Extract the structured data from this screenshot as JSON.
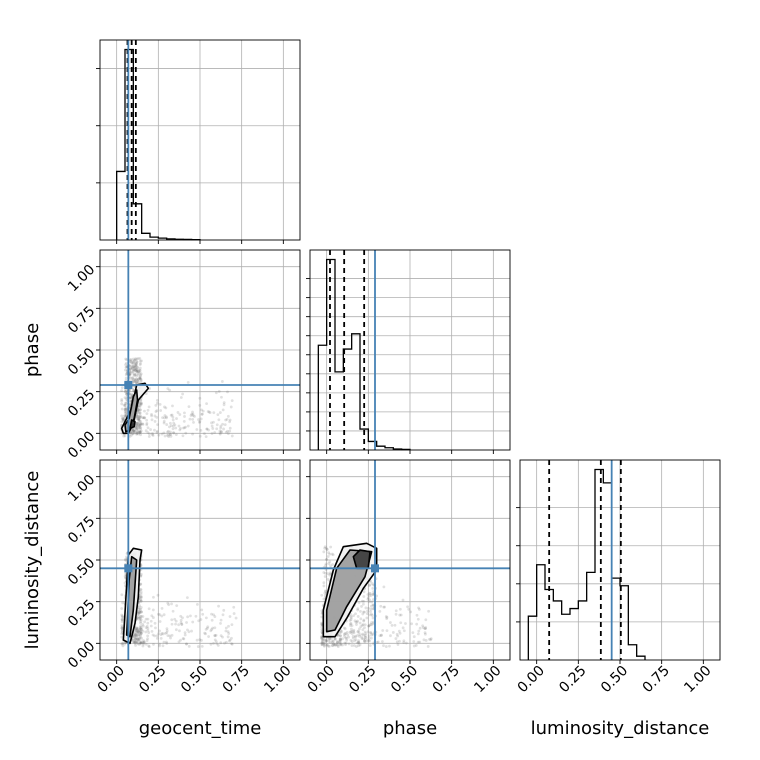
{
  "chart_data": {
    "type": "corner",
    "title": "",
    "parameters": [
      "geocent_time",
      "phase",
      "luminosity_distance"
    ],
    "axis_labels": {
      "x": [
        "geocent_time",
        "phase",
        "luminosity_distance"
      ],
      "y": [
        "phase",
        "luminosity_distance"
      ]
    },
    "xlim": [
      -0.1,
      1.1
    ],
    "ylim": [
      -0.1,
      1.1
    ],
    "ticks": [
      0.0,
      0.25,
      0.5,
      0.75,
      1.0
    ],
    "tick_labels": [
      "0.00",
      "0.25",
      "0.50",
      "0.75",
      "1.00"
    ],
    "grid": true,
    "truth_color": "#4682b4",
    "truths": {
      "geocent_time": 0.07,
      "phase": 0.29,
      "luminosity_distance": 0.45
    },
    "quantiles": {
      "geocent_time": [
        0.065,
        0.09,
        0.115
      ],
      "phase": [
        0.02,
        0.105,
        0.225
      ],
      "luminosity_distance": [
        0.075,
        0.385,
        0.505
      ]
    },
    "histograms": {
      "geocent_time": {
        "bin_edges": [
          0.0,
          0.05,
          0.1,
          0.15,
          0.2,
          0.25,
          0.3,
          0.35,
          0.4,
          0.45,
          0.5
        ],
        "counts": [
          0.36,
          1.0,
          0.19,
          0.035,
          0.015,
          0.01,
          0.006,
          0.004,
          0.003,
          0.002
        ],
        "yticks": [
          0.3,
          0.6,
          0.9
        ]
      },
      "phase": {
        "bin_edges": [
          -0.05,
          0.0,
          0.05,
          0.1,
          0.15,
          0.2,
          0.25,
          0.3,
          0.35,
          0.4,
          0.45,
          0.5
        ],
        "counts": [
          0.55,
          1.0,
          0.41,
          0.53,
          0.61,
          0.11,
          0.045,
          0.02,
          0.012,
          0.005,
          0.003
        ],
        "yticks": [
          0.1,
          0.2,
          0.3,
          0.4,
          0.5,
          0.6,
          0.7,
          0.8,
          0.9
        ]
      },
      "luminosity_distance": {
        "bin_edges": [
          -0.05,
          0.0,
          0.05,
          0.1,
          0.15,
          0.2,
          0.25,
          0.3,
          0.35,
          0.4,
          0.45,
          0.5,
          0.55,
          0.6,
          0.65
        ],
        "counts": [
          0.23,
          0.5,
          0.37,
          0.31,
          0.24,
          0.27,
          0.31,
          0.46,
          1.0,
          0.93,
          0.43,
          0.39,
          0.08,
          0.02
        ],
        "yticks": [
          0.2,
          0.4,
          0.6,
          0.8
        ]
      }
    },
    "scatter_clouds": {
      "phase_vs_geocent_time": {
        "x_range": [
          0.03,
          0.7
        ],
        "y_range": [
          -0.02,
          0.62
        ],
        "core_x": [
          0.05,
          0.15
        ],
        "core_y": [
          0.0,
          0.45
        ]
      },
      "luminosity_distance_vs_geocent_time": {
        "x_range": [
          0.03,
          0.72
        ],
        "y_range": [
          -0.02,
          0.6
        ],
        "core_x": [
          0.05,
          0.15
        ],
        "core_y": [
          0.0,
          0.55
        ]
      },
      "luminosity_distance_vs_phase": {
        "x_range": [
          -0.03,
          0.63
        ],
        "y_range": [
          -0.02,
          0.62
        ],
        "core_x": [
          -0.02,
          0.3
        ],
        "core_y": [
          0.0,
          0.58
        ]
      }
    },
    "contours": {
      "phase_vs_geocent_time": [
        [
          [
            0.04,
            0.0
          ],
          [
            0.07,
            0.0
          ],
          [
            0.1,
            0.06
          ],
          [
            0.13,
            0.2
          ],
          [
            0.19,
            0.27
          ],
          [
            0.17,
            0.3
          ],
          [
            0.12,
            0.29
          ],
          [
            0.09,
            0.15
          ],
          [
            0.05,
            0.07
          ],
          [
            0.03,
            0.03
          ]
        ],
        [
          [
            0.055,
            0.01
          ],
          [
            0.08,
            0.02
          ],
          [
            0.105,
            0.09
          ],
          [
            0.125,
            0.2
          ],
          [
            0.12,
            0.26
          ],
          [
            0.1,
            0.22
          ],
          [
            0.075,
            0.09
          ],
          [
            0.05,
            0.05
          ]
        ],
        [
          [
            0.08,
            0.03
          ],
          [
            0.105,
            0.04
          ],
          [
            0.11,
            0.07
          ],
          [
            0.09,
            0.08
          ]
        ]
      ],
      "luminosity_distance_vs_geocent_time": [
        [
          [
            0.04,
            0.02
          ],
          [
            0.08,
            0.0
          ],
          [
            0.11,
            0.12
          ],
          [
            0.13,
            0.28
          ],
          [
            0.14,
            0.5
          ],
          [
            0.15,
            0.56
          ],
          [
            0.1,
            0.57
          ],
          [
            0.07,
            0.53
          ],
          [
            0.06,
            0.35
          ],
          [
            0.045,
            0.1
          ]
        ],
        [
          [
            0.06,
            0.05
          ],
          [
            0.08,
            0.04
          ],
          [
            0.1,
            0.2
          ],
          [
            0.12,
            0.5
          ],
          [
            0.09,
            0.52
          ],
          [
            0.075,
            0.38
          ],
          [
            0.065,
            0.15
          ]
        ]
      ],
      "luminosity_distance_vs_phase": [
        [
          [
            -0.02,
            0.04
          ],
          [
            0.05,
            0.04
          ],
          [
            0.12,
            0.15
          ],
          [
            0.22,
            0.33
          ],
          [
            0.3,
            0.44
          ],
          [
            0.3,
            0.57
          ],
          [
            0.24,
            0.6
          ],
          [
            0.1,
            0.58
          ],
          [
            0.04,
            0.44
          ],
          [
            -0.02,
            0.2
          ]
        ],
        [
          [
            0.0,
            0.07
          ],
          [
            0.05,
            0.08
          ],
          [
            0.12,
            0.22
          ],
          [
            0.23,
            0.4
          ],
          [
            0.27,
            0.55
          ],
          [
            0.14,
            0.56
          ],
          [
            0.06,
            0.45
          ],
          [
            0.0,
            0.2
          ]
        ],
        [
          [
            0.18,
            0.45
          ],
          [
            0.25,
            0.45
          ],
          [
            0.26,
            0.55
          ],
          [
            0.2,
            0.56
          ],
          [
            0.16,
            0.52
          ]
        ]
      ]
    }
  }
}
